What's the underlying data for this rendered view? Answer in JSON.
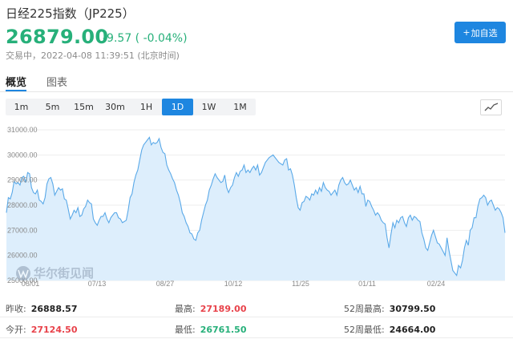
{
  "header": {
    "title": "日经225指数（JP225）",
    "price": "26879.00",
    "change": "-9.57 ( -0.04%)",
    "status": "交易中，2022-04-08 11:39:51 (北京时间)",
    "add_label": "加自选",
    "add_icon": "plus-icon"
  },
  "tabs": [
    {
      "label": "概览"
    },
    {
      "label": "图表"
    }
  ],
  "periods": [
    "1m",
    "5m",
    "15m",
    "30m",
    "1H",
    "1D",
    "1W",
    "1M"
  ],
  "active_period": "1D",
  "watermark": "华尔街见闻",
  "colors": {
    "up": "#e8424a",
    "down": "#27b07a",
    "accent": "#1e86e0",
    "line": "#5aa9e8",
    "fill": "#ddeefc"
  },
  "chart_data": {
    "type": "area",
    "y_ticks": [
      "31000.00",
      "30000.00",
      "29000.00",
      "28000.00",
      "27000.00",
      "26000.00",
      "25000.00"
    ],
    "x_labels": [
      "06/01",
      "07/13",
      "08/27",
      "10/12",
      "11/25",
      "01/11",
      "02/24"
    ],
    "ylim": [
      25000,
      31000
    ],
    "grid": true,
    "values": [
      27700,
      28300,
      28250,
      28500,
      28950,
      28850,
      28900,
      28800,
      29100,
      29150,
      28900,
      29300,
      29250,
      28700,
      28500,
      28450,
      28600,
      28200,
      28150,
      28050,
      28300,
      28850,
      29050,
      29100,
      28850,
      28400,
      28550,
      28700,
      28600,
      28650,
      28250,
      28200,
      27850,
      27450,
      27600,
      27800,
      27700,
      27900,
      27550,
      27600,
      27850,
      27950,
      28200,
      28100,
      28050,
      27450,
      27300,
      27200,
      27400,
      27550,
      27550,
      27700,
      27450,
      27300,
      27500,
      27600,
      27700,
      27700,
      27500,
      27450,
      27300,
      27350,
      27400,
      27800,
      28300,
      28450,
      28900,
      29200,
      29400,
      29800,
      30200,
      30400,
      30500,
      30600,
      30700,
      30400,
      30500,
      30450,
      30500,
      30650,
      30300,
      30100,
      30050,
      29600,
      29400,
      29250,
      29050,
      28900,
      28600,
      28400,
      28100,
      27700,
      27550,
      27300,
      27150,
      26900,
      26850,
      26650,
      26600,
      26900,
      27000,
      27400,
      27700,
      28000,
      28200,
      28600,
      28800,
      29050,
      29250,
      29100,
      29000,
      28900,
      28950,
      29200,
      28700,
      28500,
      28700,
      28800,
      29100,
      29300,
      29150,
      29350,
      29400,
      29600,
      29300,
      29400,
      29300,
      29450,
      29550,
      29400,
      29600,
      29200,
      29300,
      29500,
      29700,
      29800,
      29900,
      29950,
      30000,
      29900,
      29800,
      29700,
      29650,
      29600,
      29800,
      29850,
      29400,
      29450,
      29200,
      28800,
      28300,
      27900,
      27800,
      28100,
      28150,
      28350,
      28300,
      28200,
      28450,
      28400,
      28600,
      28450,
      28700,
      28550,
      28900,
      28700,
      28600,
      28550,
      28400,
      28500,
      28600,
      28400,
      28800,
      29000,
      29100,
      28900,
      28800,
      28850,
      29000,
      28800,
      28600,
      28700,
      28500,
      28750,
      28450,
      28450,
      27950,
      28200,
      28150,
      27950,
      27800,
      27600,
      27700,
      27600,
      27400,
      27300,
      27250,
      26700,
      26300,
      26850,
      27300,
      27100,
      27400,
      27300,
      27500,
      27550,
      27300,
      27150,
      27500,
      27600,
      27400,
      27550,
      27500,
      27400,
      27350,
      26900,
      26650,
      26300,
      26200,
      26500,
      26800,
      27000,
      26750,
      26500,
      26450,
      26300,
      26150,
      26000,
      26700,
      26200,
      25800,
      25400,
      25300,
      25200,
      25600,
      25500,
      25800,
      26300,
      26600,
      26400,
      27000,
      27100,
      27500,
      27500,
      27950,
      28250,
      28300,
      28400,
      28300,
      28000,
      28150,
      28200,
      28000,
      27800,
      27900,
      27850,
      27700,
      27500,
      26900
    ]
  },
  "stats": [
    [
      {
        "label": "昨收:",
        "value": "26888.57",
        "tone": "neutral"
      },
      {
        "label": "最高:",
        "value": "27189.00",
        "tone": "up"
      },
      {
        "label": "52周最高:",
        "value": "30799.50",
        "tone": "neutral"
      }
    ],
    [
      {
        "label": "今开:",
        "value": "27124.50",
        "tone": "up"
      },
      {
        "label": "最低:",
        "value": "26761.50",
        "tone": "down"
      },
      {
        "label": "52周最低:",
        "value": "24664.00",
        "tone": "neutral"
      }
    ]
  ]
}
